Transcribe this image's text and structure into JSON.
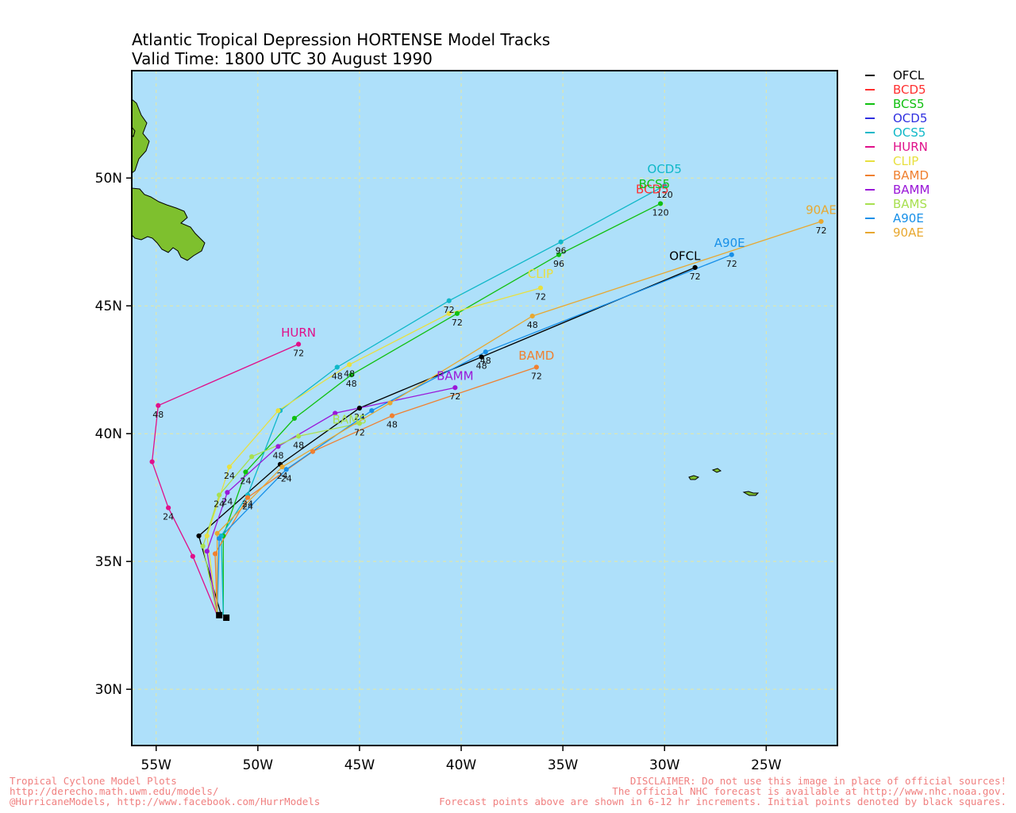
{
  "title": {
    "line1": "Atlantic Tropical Depression HORTENSE Model Tracks",
    "line2": "Valid Time: 1800 UTC 30 August 1990"
  },
  "colors": {
    "ocean": "#aee0fa",
    "land": "#7ec02e",
    "grid": "#e8e8a0"
  },
  "footer": {
    "left": [
      "Tropical Cyclone Model Plots",
      "http://derecho.math.uwm.edu/models/",
      "@HurricaneModels, http://www.facebook.com/HurrModels"
    ],
    "right": [
      "DISCLAIMER: Do not use this image in place of official sources!",
      "The official NHC forecast is available at http://www.nhc.noaa.gov.",
      "Forecast points above are shown in 6-12 hr increments. Initial points denoted by black squares."
    ]
  },
  "chart_data": {
    "type": "line",
    "xlabel": "",
    "ylabel": "",
    "xlim": [
      -56.2,
      -21.5
    ],
    "ylim": [
      27.8,
      54.2
    ],
    "x_ticks": [
      {
        "value": -55,
        "label": "55W"
      },
      {
        "value": -50,
        "label": "50W"
      },
      {
        "value": -45,
        "label": "45W"
      },
      {
        "value": -40,
        "label": "40W"
      },
      {
        "value": -35,
        "label": "35W"
      },
      {
        "value": -30,
        "label": "30W"
      },
      {
        "value": -25,
        "label": "25W"
      }
    ],
    "y_ticks": [
      {
        "value": 30,
        "label": "30N"
      },
      {
        "value": 35,
        "label": "35N"
      },
      {
        "value": 40,
        "label": "40N"
      },
      {
        "value": 45,
        "label": "45N"
      },
      {
        "value": 50,
        "label": "50N"
      }
    ],
    "grid": true,
    "legend_position": "top-right, outside plot",
    "initial_point": {
      "lon": -51.8,
      "lat": 32.9
    },
    "series": [
      {
        "name": "OFCL",
        "color": "#000000",
        "label": "OFCL",
        "points": [
          [
            -51.8,
            32.9
          ],
          [
            -52.9,
            36.0
          ],
          [
            -48.9,
            38.8
          ],
          [
            -45.0,
            41.0
          ],
          [
            -39.0,
            43.0
          ],
          [
            -28.5,
            46.5
          ]
        ],
        "hours": [
          [
            "24",
            3
          ],
          [
            "48",
            4
          ],
          [
            "72",
            5
          ]
        ]
      },
      {
        "name": "BCD5",
        "color": "#ff3030",
        "label": "",
        "points": [],
        "hours": []
      },
      {
        "name": "BCS5",
        "color": "#10c010",
        "label": "BCS5",
        "points": [
          [
            -51.7,
            32.9
          ],
          [
            -51.7,
            36.0
          ],
          [
            -50.6,
            38.5
          ],
          [
            -48.2,
            40.6
          ],
          [
            -45.4,
            42.3
          ],
          [
            -40.2,
            44.7
          ],
          [
            -35.2,
            47.0
          ],
          [
            -30.2,
            49.0
          ]
        ],
        "hours": [
          [
            "24",
            2
          ],
          [
            "48",
            4
          ],
          [
            "72",
            5
          ],
          [
            "96",
            6
          ],
          [
            "120",
            7
          ]
        ]
      },
      {
        "name": "OCD5",
        "color": "#3030e0",
        "label": "",
        "points": [],
        "hours": []
      },
      {
        "name": "OCS5",
        "color": "#10b8c8",
        "label": "OCD5",
        "points": [
          [
            -51.7,
            32.9
          ],
          [
            -51.8,
            36.0
          ],
          [
            -50.5,
            37.6
          ],
          [
            -48.9,
            40.9
          ],
          [
            -46.1,
            42.6
          ],
          [
            -40.6,
            45.2
          ],
          [
            -35.1,
            47.5
          ],
          [
            -30.0,
            49.7
          ]
        ],
        "hours": [
          [
            "24",
            2
          ],
          [
            "48",
            4
          ],
          [
            "72",
            5
          ],
          [
            "96",
            6
          ],
          [
            "120",
            7
          ]
        ]
      },
      {
        "name": "HURN",
        "color": "#e0108a",
        "label": "HURN",
        "points": [
          [
            -52.0,
            32.9
          ],
          [
            -53.2,
            35.2
          ],
          [
            -54.4,
            37.1
          ],
          [
            -55.2,
            38.9
          ],
          [
            -54.9,
            41.1
          ],
          [
            -48.0,
            43.5
          ]
        ],
        "hours": [
          [
            "24",
            2
          ],
          [
            "48",
            4
          ],
          [
            "72",
            5
          ]
        ]
      },
      {
        "name": "CLIP",
        "color": "#e8e040",
        "label": "CLIP",
        "points": [
          [
            -52.0,
            32.9
          ],
          [
            -52.5,
            36.0
          ],
          [
            -51.4,
            38.7
          ],
          [
            -49.0,
            40.9
          ],
          [
            -45.5,
            42.7
          ],
          [
            -40.6,
            44.7
          ],
          [
            -36.1,
            45.7
          ]
        ],
        "hours": [
          [
            "24",
            2
          ],
          [
            "48",
            4
          ],
          [
            "72",
            6
          ]
        ]
      },
      {
        "name": "BAMD",
        "color": "#f08030",
        "label": "BAMD",
        "points": [
          [
            -52.0,
            32.9
          ],
          [
            -52.1,
            35.3
          ],
          [
            -50.5,
            37.5
          ],
          [
            -47.3,
            39.3
          ],
          [
            -43.4,
            40.7
          ],
          [
            -36.3,
            42.6
          ]
        ],
        "hours": [
          [
            "24",
            2
          ],
          [
            "48",
            4
          ],
          [
            "72",
            5
          ]
        ]
      },
      {
        "name": "BAMM",
        "color": "#9a18d8",
        "label": "BAMM",
        "points": [
          [
            -52.0,
            32.9
          ],
          [
            -52.5,
            35.4
          ],
          [
            -51.5,
            37.7
          ],
          [
            -49.0,
            39.5
          ],
          [
            -46.2,
            40.8
          ],
          [
            -40.3,
            41.8
          ]
        ],
        "hours": [
          [
            "24",
            2
          ],
          [
            "48",
            3
          ],
          [
            "72",
            5
          ]
        ]
      },
      {
        "name": "BAMS",
        "color": "#a8e050",
        "label": "BAMS",
        "points": [
          [
            -52.0,
            32.9
          ],
          [
            -52.7,
            35.6
          ],
          [
            -51.9,
            37.6
          ],
          [
            -50.3,
            39.1
          ],
          [
            -48.0,
            39.9
          ],
          [
            -45.0,
            40.4
          ]
        ],
        "hours": [
          [
            "24",
            2
          ],
          [
            "48",
            4
          ],
          [
            "72",
            5
          ]
        ]
      },
      {
        "name": "A90E",
        "color": "#1890e8",
        "label": "A90E",
        "points": [
          [
            -52.0,
            32.9
          ],
          [
            -51.9,
            35.9
          ],
          [
            -48.6,
            38.6
          ],
          [
            -44.4,
            40.9
          ],
          [
            -38.8,
            43.2
          ],
          [
            -26.7,
            47.0
          ]
        ],
        "hours": [
          [
            "24",
            2
          ],
          [
            "48",
            4
          ],
          [
            "72",
            5
          ]
        ]
      },
      {
        "name": "90AE",
        "color": "#e8a830",
        "label": "90AE",
        "points": [
          [
            -52.0,
            32.9
          ],
          [
            -52.0,
            36.1
          ],
          [
            -48.8,
            38.7
          ],
          [
            -43.5,
            41.2
          ],
          [
            -36.5,
            44.6
          ],
          [
            -22.3,
            48.3
          ]
        ],
        "hours": [
          [
            "24",
            2
          ],
          [
            "48",
            4
          ],
          [
            "72",
            5
          ]
        ]
      }
    ],
    "labels": [
      {
        "text": "OFCL",
        "series": "OFCL",
        "lon": -29.0,
        "lat": 46.8
      },
      {
        "text": "BCD5",
        "series": "BCD5",
        "lon": -30.6,
        "lat": 49.4
      },
      {
        "text": "BCS5",
        "series": "BCS5",
        "lon": -30.5,
        "lat": 49.6
      },
      {
        "text": "OCD5",
        "series": "OCS5",
        "lon": -30.0,
        "lat": 50.2
      },
      {
        "text": "HURN",
        "series": "HURN",
        "lon": -48.0,
        "lat": 43.8
      },
      {
        "text": "CLIP",
        "series": "CLIP",
        "lon": -36.1,
        "lat": 46.1
      },
      {
        "text": "BAMD",
        "series": "BAMD",
        "lon": -36.3,
        "lat": 42.9
      },
      {
        "text": "BAMM",
        "series": "BAMM",
        "lon": -40.3,
        "lat": 42.1
      },
      {
        "text": "BAMS",
        "series": "BAMS",
        "lon": -45.5,
        "lat": 40.4
      },
      {
        "text": "A90E",
        "series": "A90E",
        "lon": -26.8,
        "lat": 47.3
      },
      {
        "text": "90AE",
        "series": "90AE",
        "lon": -22.3,
        "lat": 48.6
      }
    ]
  }
}
